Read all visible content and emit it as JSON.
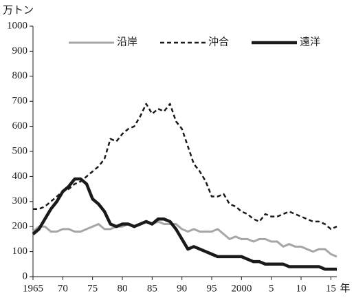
{
  "chart_data": {
    "type": "line",
    "y_unit": "万トン",
    "x_unit": "年",
    "x": [
      1965,
      1966,
      1967,
      1968,
      1969,
      1970,
      1971,
      1972,
      1973,
      1974,
      1975,
      1976,
      1977,
      1978,
      1979,
      1980,
      1981,
      1982,
      1983,
      1984,
      1985,
      1986,
      1987,
      1988,
      1989,
      1990,
      1991,
      1992,
      1993,
      1994,
      1995,
      1996,
      1997,
      1998,
      1999,
      2000,
      2001,
      2002,
      2003,
      2004,
      2005,
      2006,
      2007,
      2008,
      2009,
      2010,
      2011,
      2012,
      2013,
      2014,
      2015,
      2016
    ],
    "series": [
      {
        "name": "沿岸",
        "color": "#a6a6a6",
        "width": 3,
        "dash": false,
        "values": [
          180,
          200,
          200,
          180,
          180,
          190,
          190,
          180,
          180,
          190,
          200,
          210,
          190,
          190,
          200,
          200,
          210,
          200,
          210,
          220,
          210,
          220,
          210,
          210,
          210,
          190,
          180,
          190,
          180,
          180,
          180,
          190,
          170,
          150,
          160,
          150,
          150,
          140,
          150,
          150,
          140,
          140,
          120,
          130,
          120,
          120,
          110,
          100,
          110,
          110,
          90,
          80
        ]
      },
      {
        "name": "沖合",
        "color": "#1a1a1a",
        "width": 2.5,
        "dash": true,
        "values": [
          270,
          270,
          280,
          300,
          320,
          340,
          350,
          370,
          380,
          400,
          420,
          440,
          470,
          550,
          540,
          570,
          590,
          600,
          640,
          690,
          650,
          670,
          660,
          690,
          620,
          590,
          520,
          450,
          420,
          380,
          320,
          320,
          330,
          290,
          280,
          260,
          250,
          230,
          220,
          250,
          240,
          240,
          250,
          260,
          250,
          240,
          230,
          220,
          220,
          210,
          190,
          200
        ]
      },
      {
        "name": "遠洋",
        "color": "#1a1a1a",
        "width": 4.5,
        "dash": false,
        "values": [
          170,
          190,
          230,
          270,
          300,
          340,
          360,
          390,
          390,
          370,
          310,
          290,
          260,
          210,
          200,
          210,
          210,
          200,
          210,
          220,
          210,
          230,
          230,
          220,
          190,
          150,
          110,
          120,
          110,
          100,
          90,
          80,
          80,
          80,
          80,
          80,
          70,
          60,
          60,
          50,
          50,
          50,
          50,
          40,
          40,
          40,
          40,
          40,
          40,
          30,
          30,
          30
        ]
      }
    ],
    "xlim": [
      1965,
      2016
    ],
    "xticks": [
      1965,
      {
        "value": 1970,
        "label": "70"
      },
      {
        "value": 1975,
        "label": "75"
      },
      {
        "value": 1980,
        "label": "80"
      },
      {
        "value": 1985,
        "label": "85"
      },
      {
        "value": 1990,
        "label": "90"
      },
      {
        "value": 1995,
        "label": "95"
      },
      2000,
      {
        "value": 2005,
        "label": "5"
      },
      {
        "value": 2010,
        "label": "10"
      },
      {
        "value": 2015,
        "label": "15"
      }
    ],
    "ylim": [
      0,
      1000
    ],
    "yticks": [
      0,
      100,
      200,
      300,
      400,
      500,
      600,
      700,
      800,
      900,
      1000
    ],
    "grid": false,
    "legend": "top"
  }
}
